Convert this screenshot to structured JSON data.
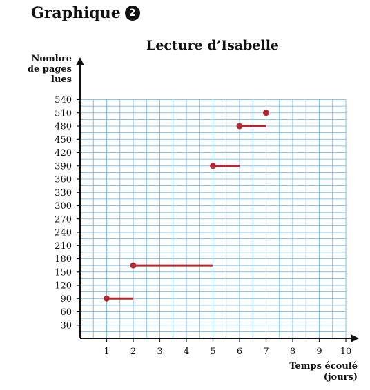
{
  "header": {
    "label": "Graphique",
    "badge": "2"
  },
  "chart_data": {
    "type": "line",
    "title": "Lecture d’Isabelle",
    "ylabel_lines": [
      "Nombre",
      "de pages",
      "lues"
    ],
    "xlabel_lines": [
      "Temps écoulé",
      "(jours)"
    ],
    "x_ticks": [
      1,
      2,
      3,
      4,
      5,
      6,
      7,
      8,
      9,
      10
    ],
    "y_ticks": [
      30,
      60,
      90,
      120,
      150,
      180,
      210,
      240,
      270,
      300,
      330,
      360,
      390,
      420,
      450,
      480,
      510,
      540
    ],
    "xlim": [
      0,
      10
    ],
    "ylim": [
      0,
      540
    ],
    "grid": true,
    "grid_color": "#5fb3e6",
    "series_color": "#b5262e",
    "segments": [
      {
        "x_start": 1,
        "x_end": 2,
        "y": 90
      },
      {
        "x_start": 2,
        "x_end": 5,
        "y": 165
      },
      {
        "x_start": 5,
        "x_end": 6,
        "y": 390
      },
      {
        "x_start": 6,
        "x_end": 7,
        "y": 480
      },
      {
        "x_start": 7,
        "x_end": 7,
        "y": 510
      }
    ]
  }
}
